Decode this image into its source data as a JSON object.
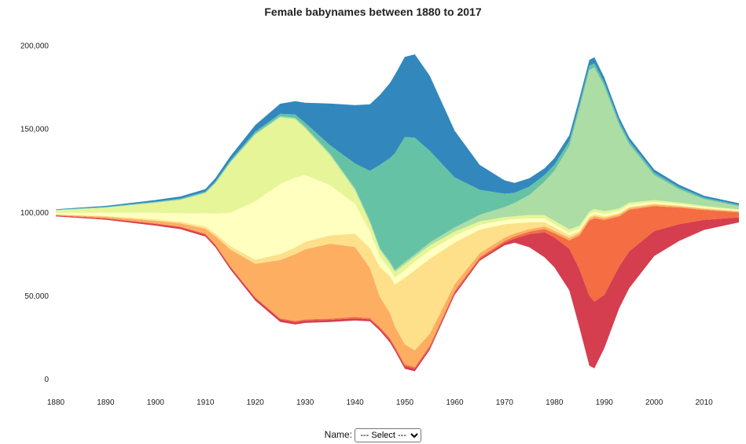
{
  "chart_data": {
    "type": "area",
    "title": "Female babynames between 1880 to 2017",
    "xlabel": "",
    "ylabel": "",
    "offset": "streamgraph",
    "xlim": [
      1880,
      2017
    ],
    "ylim": [
      0,
      205000
    ],
    "x_ticks": [
      "1880",
      "1890",
      "1900",
      "1910",
      "1920",
      "1930",
      "1940",
      "1950",
      "1960",
      "1970",
      "1980",
      "1990",
      "2000",
      "2010"
    ],
    "y_ticks": [
      "0",
      "50,000",
      "100,000",
      "150,000",
      "200,000"
    ],
    "grid": false,
    "legend": "none",
    "x": [
      1880,
      1890,
      1900,
      1905,
      1910,
      1912,
      1915,
      1920,
      1925,
      1928,
      1930,
      1935,
      1940,
      1943,
      1945,
      1947,
      1948,
      1950,
      1952,
      1955,
      1960,
      1965,
      1970,
      1972,
      1975,
      1978,
      1980,
      1983,
      1985,
      1987,
      1988,
      1990,
      1993,
      1995,
      2000,
      2005,
      2010,
      2017
    ],
    "series": [
      {
        "color": "#d53e4f",
        "values": [
          500,
          700,
          1000,
          1100,
          1200,
          1300,
          1400,
          1500,
          1500,
          1400,
          1400,
          1300,
          1300,
          1200,
          1400,
          1700,
          1600,
          1600,
          1500,
          1400,
          1300,
          1100,
          1500,
          2500,
          8000,
          15000,
          18000,
          25000,
          35000,
          42000,
          40000,
          32000,
          25000,
          22000,
          15000,
          10000,
          6000,
          3000
        ]
      },
      {
        "color": "#f46d43",
        "values": [
          200,
          300,
          400,
          400,
          500,
          500,
          500,
          500,
          600,
          700,
          700,
          700,
          800,
          800,
          900,
          1000,
          1000,
          1000,
          1100,
          1200,
          1100,
          1000,
          1100,
          1300,
          1500,
          2000,
          2500,
          5000,
          20000,
          45000,
          50000,
          45000,
          30000,
          25000,
          15000,
          10000,
          6000,
          3000
        ]
      },
      {
        "color": "#fdae61",
        "values": [
          300,
          800,
          1500,
          2000,
          3000,
          5000,
          10000,
          20000,
          35000,
          40000,
          42000,
          45000,
          42000,
          30000,
          18000,
          15000,
          12000,
          12000,
          10000,
          7000,
          4000,
          2500,
          2000,
          1800,
          1500,
          1500,
          1500,
          1500,
          1400,
          1300,
          1300,
          1200,
          1100,
          1000,
          900,
          800,
          700,
          600
        ]
      },
      {
        "color": "#fee08b",
        "values": [
          200,
          400,
          800,
          1000,
          1300,
          1500,
          2000,
          2500,
          3500,
          4000,
          4500,
          5000,
          8000,
          12000,
          18000,
          22000,
          25000,
          40000,
          48000,
          45000,
          25000,
          14000,
          8000,
          6000,
          4000,
          2500,
          2000,
          1500,
          1200,
          1000,
          1000,
          900,
          800,
          700,
          600,
          500,
          400,
          300
        ]
      },
      {
        "color": "#ffffbf",
        "values": [
          1000,
          2000,
          4000,
          5000,
          8000,
          12000,
          20000,
          35000,
          42000,
          42000,
          40000,
          30000,
          18000,
          10000,
          6000,
          4000,
          4000,
          4500,
          5000,
          5000,
          4000,
          3000,
          2500,
          2500,
          2500,
          2300,
          2000,
          1700,
          1500,
          1400,
          1500,
          1500,
          1400,
          1300,
          1000,
          800,
          600,
          400
        ]
      },
      {
        "color": "#e6f598",
        "values": [
          1500,
          3000,
          6000,
          8000,
          12000,
          18000,
          30000,
          40000,
          40000,
          35000,
          28000,
          18000,
          8000,
          5000,
          4000,
          3500,
          3500,
          3500,
          3000,
          3000,
          2500,
          2000,
          1800,
          1800,
          2000,
          2000,
          2000,
          1900,
          1800,
          1700,
          1700,
          1600,
          1400,
          1300,
          1100,
          900,
          700,
          500
        ]
      },
      {
        "color": "#abdda4",
        "values": [
          100,
          200,
          300,
          300,
          400,
          500,
          500,
          600,
          700,
          800,
          900,
          1000,
          1100,
          1200,
          1200,
          1300,
          1300,
          1400,
          1500,
          1800,
          2500,
          4000,
          6000,
          8000,
          12000,
          20000,
          30000,
          50000,
          70000,
          85000,
          85000,
          75000,
          50000,
          35000,
          15000,
          8000,
          4000,
          2000
        ]
      },
      {
        "color": "#66c2a5",
        "values": [
          200,
          300,
          400,
          500,
          600,
          700,
          900,
          1200,
          1500,
          2000,
          2500,
          5000,
          15000,
          30000,
          50000,
          62000,
          70000,
          75000,
          70000,
          55000,
          30000,
          15000,
          8000,
          6000,
          5000,
          4000,
          3500,
          3000,
          2800,
          2500,
          2500,
          2300,
          2000,
          1800,
          1500,
          1200,
          900,
          700
        ]
      },
      {
        "color": "#3288bd",
        "values": [
          300,
          600,
          1000,
          1300,
          1500,
          2000,
          2500,
          4000,
          6000,
          8000,
          12000,
          25000,
          35000,
          40000,
          42000,
          45000,
          47000,
          48000,
          50000,
          45000,
          28000,
          15000,
          8000,
          6000,
          5000,
          4000,
          4000,
          3500,
          3500,
          3500,
          3500,
          3000,
          2500,
          2200,
          1800,
          1500,
          1200,
          1000
        ]
      }
    ]
  },
  "controls": {
    "name_label": "Name:",
    "select_value": "--- Select ---"
  },
  "colors": {
    "axis_text": "#222222",
    "title": "#222222"
  }
}
